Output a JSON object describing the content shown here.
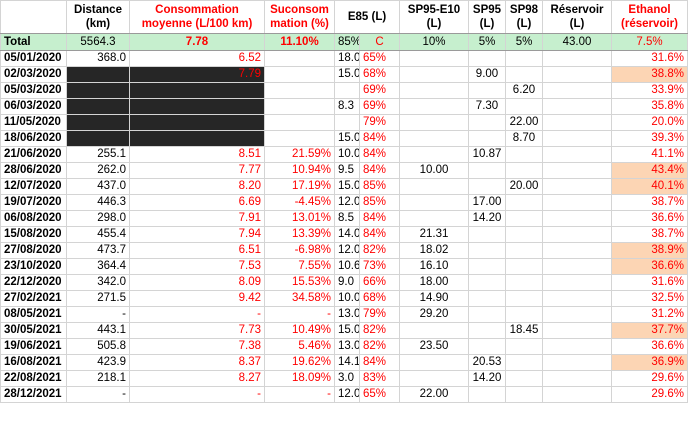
{
  "headers": {
    "date": "",
    "distance": "Distance (km)",
    "consommation": "Consommation moyenne (L/100 km)",
    "surconsommation": "Suconsom mation (%)",
    "e85": "E85 (L)",
    "sp95e10": "SP95-E10 (L)",
    "sp95": "SP95 (L)",
    "sp98": "SP98 (L)",
    "reservoir": "Réservoir (L)",
    "ethanol": "Ethanol (réservoir)"
  },
  "total": {
    "label": "Total",
    "distance": "5564.3",
    "consommation": "7.78",
    "surconsommation": "11.10%",
    "e85_a": "85%",
    "e85_b": "C",
    "sp95e10": "10%",
    "sp95": "5%",
    "sp98": "5%",
    "reservoir": "43.00",
    "ethanol": "7.5%"
  },
  "rows": [
    {
      "date": "05/01/2020",
      "distance": "368.0",
      "consommation": "6.52",
      "surconsommation": "",
      "e85": "18.0",
      "e85_pct": "65%",
      "sp95e10": "",
      "sp95": "",
      "sp98": "",
      "reservoir": "",
      "ethanol": "31.6%",
      "highlight": false,
      "masked": false
    },
    {
      "date": "02/03/2020",
      "distance": "",
      "consommation": "7.79",
      "surconsommation": "",
      "e85": "15.0",
      "e85_pct": "68%",
      "sp95e10": "",
      "sp95": "9.00",
      "sp98": "",
      "reservoir": "",
      "ethanol": "38.8%",
      "highlight": true,
      "masked": true
    },
    {
      "date": "05/03/2020",
      "distance": "",
      "consommation": "",
      "surconsommation": "",
      "e85": "",
      "e85_pct": "69%",
      "sp95e10": "",
      "sp95": "",
      "sp98": "6.20",
      "reservoir": "",
      "ethanol": "33.9%",
      "highlight": false,
      "masked": true
    },
    {
      "date": "06/03/2020",
      "distance": "",
      "consommation": "",
      "surconsommation": "",
      "e85": "8.3",
      "e85_pct": "69%",
      "sp95e10": "",
      "sp95": "7.30",
      "sp98": "",
      "reservoir": "",
      "ethanol": "35.8%",
      "highlight": false,
      "masked": true
    },
    {
      "date": "11/05/2020",
      "distance": "",
      "consommation": "",
      "surconsommation": "",
      "e85": "",
      "e85_pct": "79%",
      "sp95e10": "",
      "sp95": "",
      "sp98": "22.00",
      "reservoir": "",
      "ethanol": "20.0%",
      "highlight": false,
      "masked": true
    },
    {
      "date": "18/06/2020",
      "distance": "",
      "consommation": "",
      "surconsommation": "",
      "e85": "15.0",
      "e85_pct": "84%",
      "sp95e10": "",
      "sp95": "",
      "sp98": "8.70",
      "reservoir": "",
      "ethanol": "39.3%",
      "highlight": false,
      "masked": true
    },
    {
      "date": "21/06/2020",
      "distance": "255.1",
      "consommation": "8.51",
      "surconsommation": "21.59%",
      "e85": "10.0",
      "e85_pct": "84%",
      "sp95e10": "",
      "sp95": "10.87",
      "sp98": "",
      "reservoir": "",
      "ethanol": "41.1%",
      "highlight": false,
      "masked": false
    },
    {
      "date": "28/06/2020",
      "distance": "262.0",
      "consommation": "7.77",
      "surconsommation": "10.94%",
      "e85": "9.5",
      "e85_pct": "84%",
      "sp95e10": "10.00",
      "sp95": "",
      "sp98": "",
      "reservoir": "",
      "ethanol": "43.4%",
      "highlight": true,
      "masked": false
    },
    {
      "date": "12/07/2020",
      "distance": "437.0",
      "consommation": "8.20",
      "surconsommation": "17.19%",
      "e85": "15.0",
      "e85_pct": "85%",
      "sp95e10": "",
      "sp95": "",
      "sp98": "20.00",
      "reservoir": "",
      "ethanol": "40.1%",
      "highlight": true,
      "masked": false
    },
    {
      "date": "19/07/2020",
      "distance": "446.3",
      "consommation": "6.69",
      "surconsommation": "-4.45%",
      "e85": "12.0",
      "e85_pct": "85%",
      "sp95e10": "",
      "sp95": "17.00",
      "sp98": "",
      "reservoir": "",
      "ethanol": "38.7%",
      "highlight": false,
      "masked": false
    },
    {
      "date": "06/08/2020",
      "distance": "298.0",
      "consommation": "7.91",
      "surconsommation": "13.01%",
      "e85": "8.5",
      "e85_pct": "84%",
      "sp95e10": "",
      "sp95": "14.20",
      "sp98": "",
      "reservoir": "",
      "ethanol": "36.6%",
      "highlight": false,
      "masked": false
    },
    {
      "date": "15/08/2020",
      "distance": "455.4",
      "consommation": "7.94",
      "surconsommation": "13.39%",
      "e85": "14.0",
      "e85_pct": "84%",
      "sp95e10": "21.31",
      "sp95": "",
      "sp98": "",
      "reservoir": "",
      "ethanol": "38.7%",
      "highlight": false,
      "masked": false
    },
    {
      "date": "27/08/2020",
      "distance": "473.7",
      "consommation": "6.51",
      "surconsommation": "-6.98%",
      "e85": "12.0",
      "e85_pct": "82%",
      "sp95e10": "18.02",
      "sp95": "",
      "sp98": "",
      "reservoir": "",
      "ethanol": "38.9%",
      "highlight": true,
      "masked": false
    },
    {
      "date": "23/10/2020",
      "distance": "364.4",
      "consommation": "7.53",
      "surconsommation": "7.55%",
      "e85": "10.6",
      "e85_pct": "73%",
      "sp95e10": "16.10",
      "sp95": "",
      "sp98": "",
      "reservoir": "",
      "ethanol": "36.6%",
      "highlight": true,
      "masked": false
    },
    {
      "date": "22/12/2020",
      "distance": "342.0",
      "consommation": "8.09",
      "surconsommation": "15.53%",
      "e85": "9.0",
      "e85_pct": "66%",
      "sp95e10": "18.00",
      "sp95": "",
      "sp98": "",
      "reservoir": "",
      "ethanol": "31.6%",
      "highlight": false,
      "masked": false
    },
    {
      "date": "27/02/2021",
      "distance": "271.5",
      "consommation": "9.42",
      "surconsommation": "34.58%",
      "e85": "10.0",
      "e85_pct": "68%",
      "sp95e10": "14.90",
      "sp95": "",
      "sp98": "",
      "reservoir": "",
      "ethanol": "32.5%",
      "highlight": false,
      "masked": false
    },
    {
      "date": "08/05/2021",
      "distance": "-",
      "consommation": "-",
      "surconsommation": "-",
      "e85": "13.0",
      "e85_pct": "79%",
      "sp95e10": "29.20",
      "sp95": "",
      "sp98": "",
      "reservoir": "",
      "ethanol": "31.2%",
      "highlight": false,
      "masked": false
    },
    {
      "date": "30/05/2021",
      "distance": "443.1",
      "consommation": "7.73",
      "surconsommation": "10.49%",
      "e85": "15.0",
      "e85_pct": "82%",
      "sp95e10": "",
      "sp95": "",
      "sp98": "18.45",
      "reservoir": "",
      "ethanol": "37.7%",
      "highlight": true,
      "masked": false
    },
    {
      "date": "19/06/2021",
      "distance": "505.8",
      "consommation": "7.38",
      "surconsommation": "5.46%",
      "e85": "13.0",
      "e85_pct": "82%",
      "sp95e10": "23.50",
      "sp95": "",
      "sp98": "",
      "reservoir": "",
      "ethanol": "36.6%",
      "highlight": false,
      "masked": false
    },
    {
      "date": "16/08/2021",
      "distance": "423.9",
      "consommation": "8.37",
      "surconsommation": "19.62%",
      "e85": "14.1",
      "e85_pct": "84%",
      "sp95e10": "",
      "sp95": "20.53",
      "sp98": "",
      "reservoir": "",
      "ethanol": "36.9%",
      "highlight": true,
      "masked": false
    },
    {
      "date": "22/08/2021",
      "distance": "218.1",
      "consommation": "8.27",
      "surconsommation": "18.09%",
      "e85": "3.0",
      "e85_pct": "83%",
      "sp95e10": "",
      "sp95": "14.20",
      "sp98": "",
      "reservoir": "",
      "ethanol": "29.6%",
      "highlight": false,
      "masked": false
    },
    {
      "date": "28/12/2021",
      "distance": "-",
      "consommation": "-",
      "surconsommation": "-",
      "e85": "12.0",
      "e85_pct": "65%",
      "sp95e10": "22.00",
      "sp95": "",
      "sp98": "",
      "reservoir": "",
      "ethanol": "29.6%",
      "highlight": false,
      "masked": false
    }
  ],
  "colors": {
    "total_bg": "#c6efce",
    "highlight_bg": "#fcd5b4",
    "masked_bg": "#262626",
    "red_text": "#ff0000"
  }
}
